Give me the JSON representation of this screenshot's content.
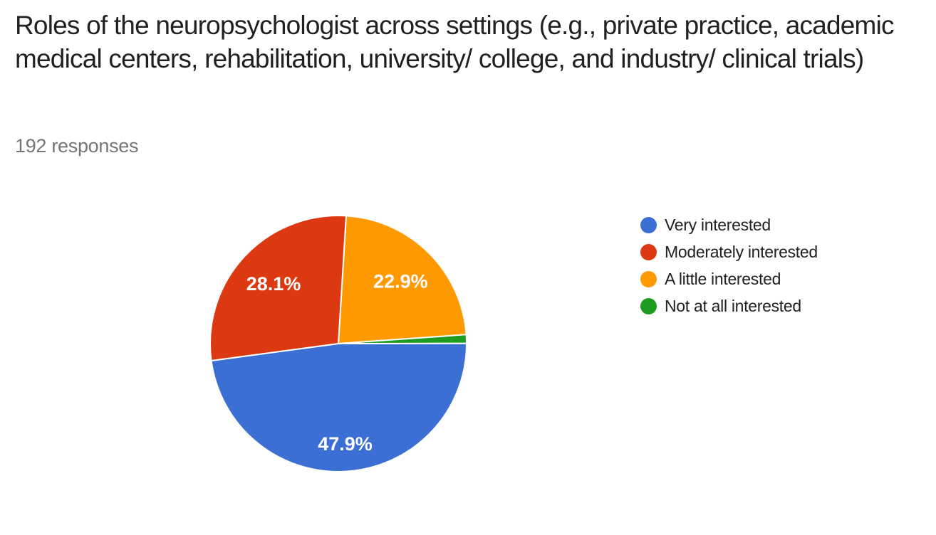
{
  "chart_data": {
    "type": "pie",
    "title": "Roles of the neuropsychologist across settings (e.g., private practice, academic medical centers, rehabilitation, university/ college, and industry/ clinical trials)",
    "subtitle": "192 responses",
    "total_responses": 192,
    "legend_position": "right",
    "start_angle_deg": 3.5,
    "draw_order": [
      2,
      3,
      0,
      1
    ],
    "slices": [
      {
        "label": "Very interested",
        "value_pct": 47.9,
        "display_pct": "47.9%",
        "color": "#3C6FD3"
      },
      {
        "label": "Moderately interested",
        "value_pct": 28.1,
        "display_pct": "28.1%",
        "color": "#DC3912"
      },
      {
        "label": "A little interested",
        "value_pct": 22.9,
        "display_pct": "22.9%",
        "color": "#FF9900"
      },
      {
        "label": "Not at all interested",
        "value_pct": 1.1,
        "display_pct": "",
        "color": "#1E9C20"
      }
    ],
    "slice_label_color": "#FFFFFF",
    "slice_separator_color": "#FFFFFF"
  }
}
